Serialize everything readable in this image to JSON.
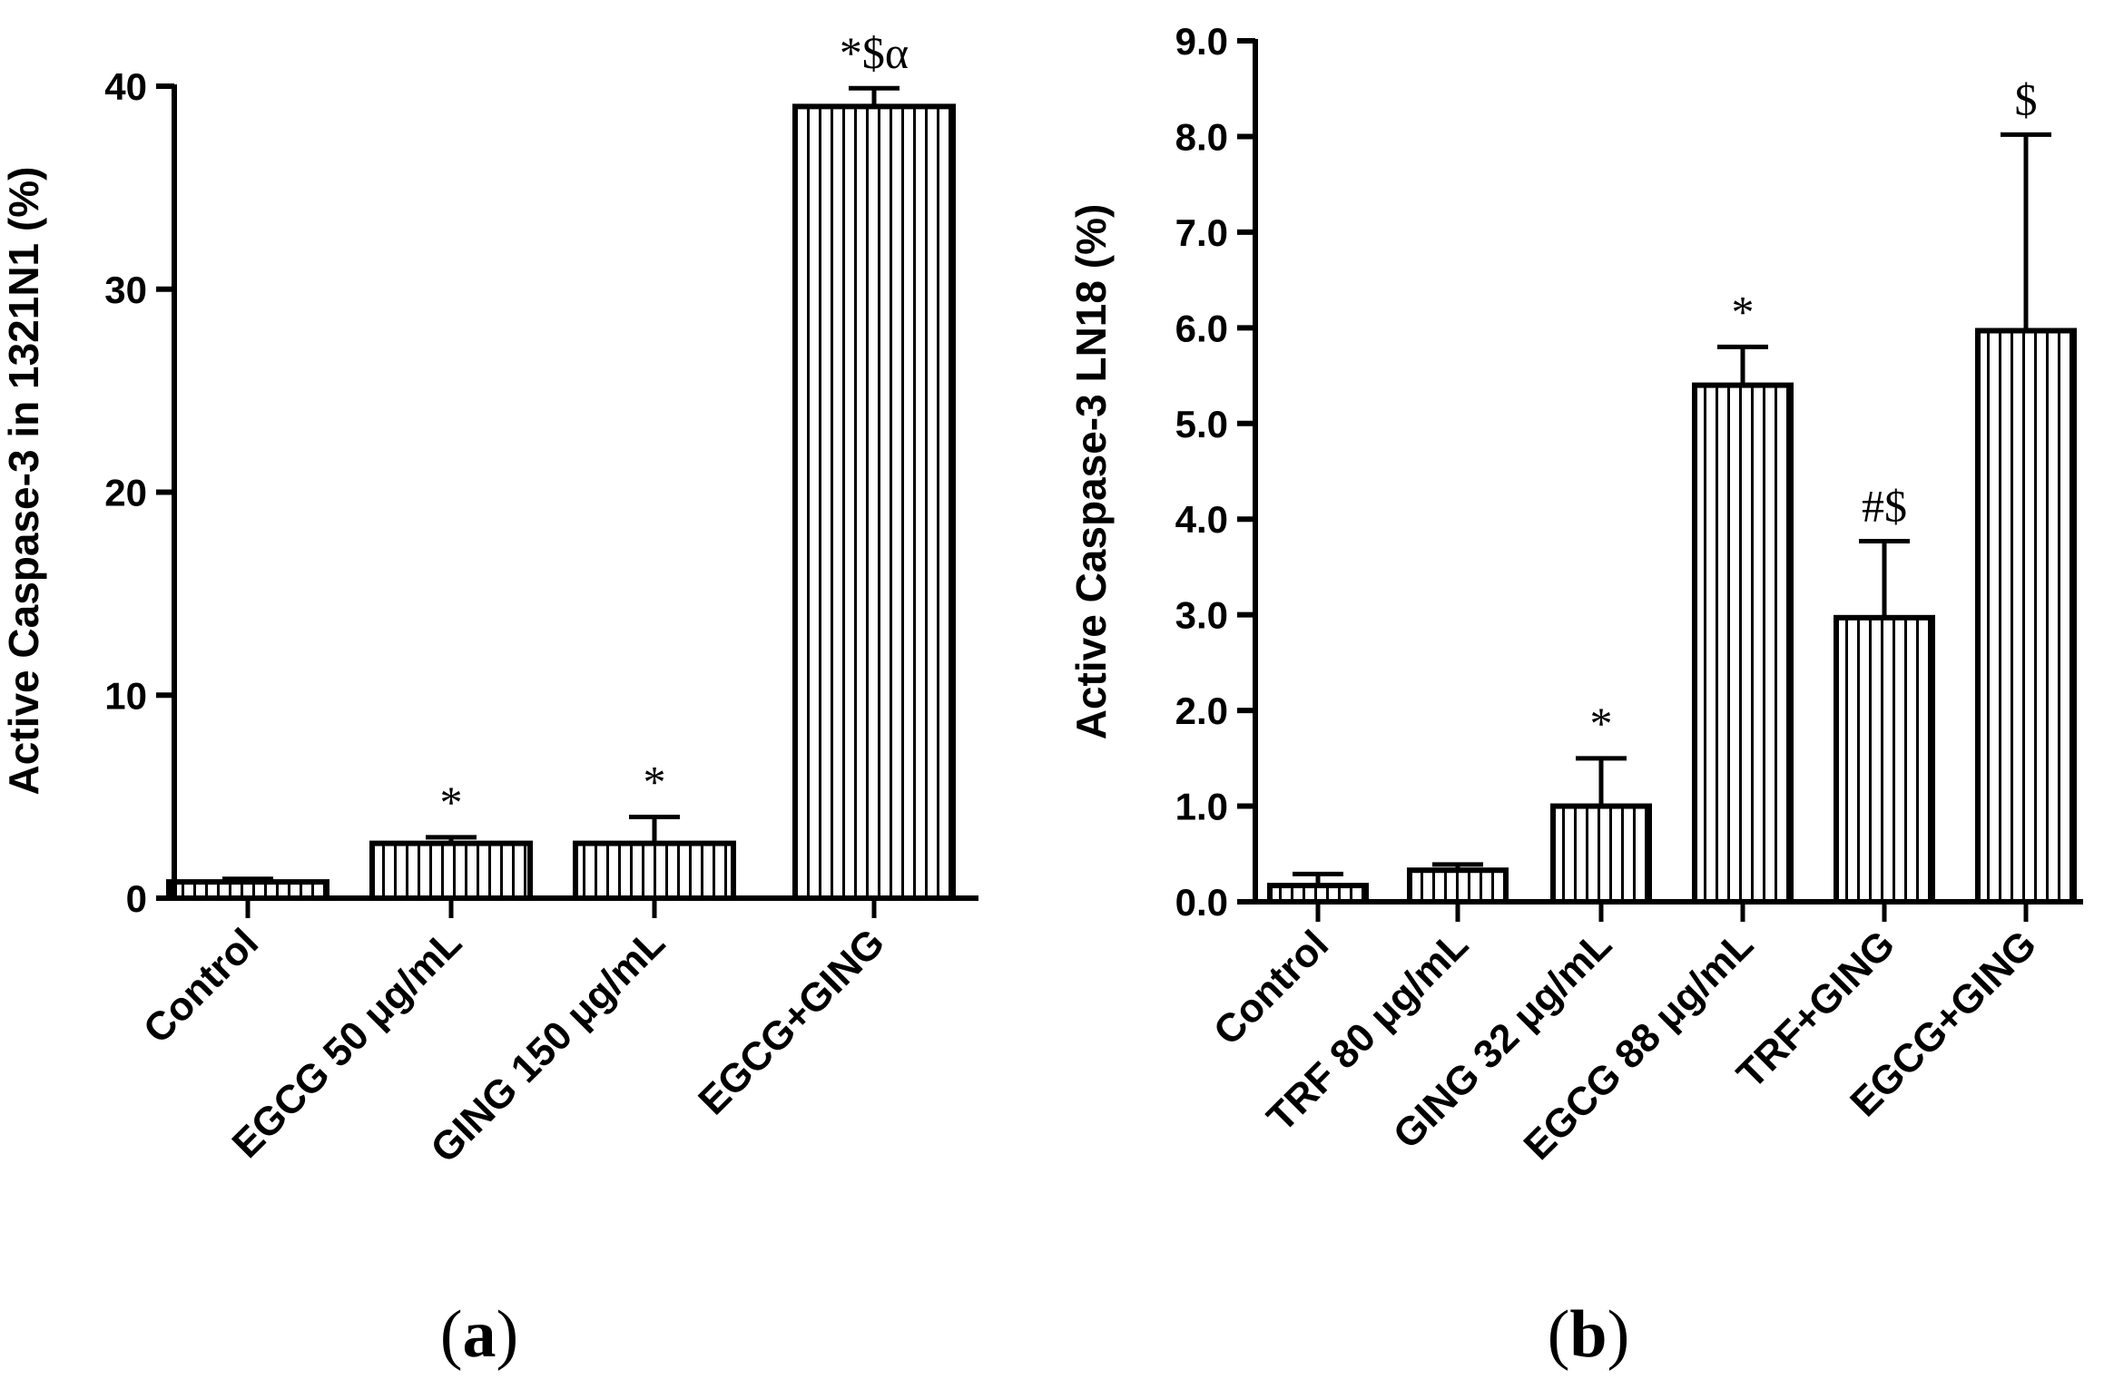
{
  "chart_data": [
    {
      "type": "bar",
      "panel_label": "a",
      "ylabel": "Active Caspase-3 in 1321N1 (%)",
      "ylim": [
        0,
        40
      ],
      "yticks": [
        "0",
        "10",
        "20",
        "30",
        "40"
      ],
      "ytick_values": [
        0,
        10,
        20,
        30,
        40
      ],
      "categories": [
        "Control",
        "EGCG 50 μg/mL",
        "GING 150 μg/mL",
        "EGCG+GING"
      ],
      "values": [
        0.8,
        2.7,
        2.7,
        39.0
      ],
      "errors": [
        0.15,
        0.3,
        1.3,
        0.9
      ],
      "annotations": [
        "",
        "*",
        "*",
        "*$α"
      ]
    },
    {
      "type": "bar",
      "panel_label": "b",
      "ylabel": "Active Caspase-3 LN18 (%)",
      "ylim": [
        0,
        9
      ],
      "yticks": [
        "0.0",
        "1.0",
        "2.0",
        "3.0",
        "4.0",
        "5.0",
        "6.0",
        "7.0",
        "8.0",
        "9.0"
      ],
      "ytick_values": [
        0,
        1,
        2,
        3,
        4,
        5,
        6,
        7,
        8,
        9
      ],
      "categories": [
        "Control",
        "TRF 80 μg/mL",
        "GING 32 μg/mL",
        "EGCG 88 μg/mL",
        "TRF+GING",
        "EGCG+GING"
      ],
      "values": [
        0.17,
        0.33,
        1.0,
        5.4,
        2.97,
        5.97
      ],
      "errors": [
        0.12,
        0.06,
        0.5,
        0.4,
        0.8,
        2.05
      ],
      "annotations": [
        "",
        "",
        "*",
        "*",
        "#$",
        "$"
      ]
    }
  ]
}
